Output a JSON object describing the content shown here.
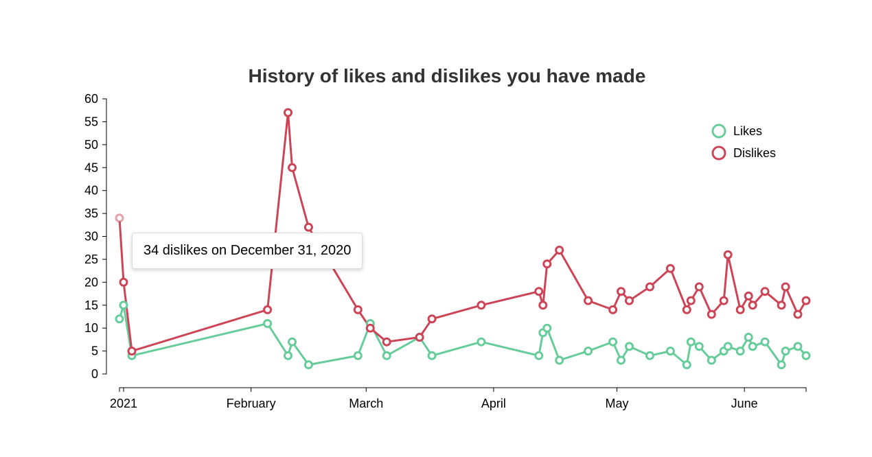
{
  "chart_data": {
    "type": "line",
    "title": "History of likes and dislikes you have made",
    "x_axis": {
      "type": "date",
      "min": "2020-12-31",
      "max": "2021-06-16",
      "tick_labels": [
        {
          "date": "2021-01-01",
          "label": "2021"
        },
        {
          "date": "2021-02-01",
          "label": "February"
        },
        {
          "date": "2021-03-01",
          "label": "March"
        },
        {
          "date": "2021-04-01",
          "label": "April"
        },
        {
          "date": "2021-05-01",
          "label": "May"
        },
        {
          "date": "2021-06-01",
          "label": "June"
        }
      ]
    },
    "y_axis": {
      "min": 0,
      "max": 60,
      "ticks": [
        0,
        5,
        10,
        15,
        20,
        25,
        30,
        35,
        40,
        45,
        50,
        55,
        60
      ]
    },
    "grid": false,
    "legend_position": "top-right",
    "series": [
      {
        "name": "Likes",
        "color": "#66cc99",
        "points": [
          {
            "x": "2020-12-31",
            "y": 12
          },
          {
            "x": "2021-01-01",
            "y": 15
          },
          {
            "x": "2021-01-03",
            "y": 4
          },
          {
            "x": "2021-02-05",
            "y": 11
          },
          {
            "x": "2021-02-10",
            "y": 4
          },
          {
            "x": "2021-02-11",
            "y": 7
          },
          {
            "x": "2021-02-15",
            "y": 2
          },
          {
            "x": "2021-02-27",
            "y": 4
          },
          {
            "x": "2021-03-02",
            "y": 11
          },
          {
            "x": "2021-03-06",
            "y": 4
          },
          {
            "x": "2021-03-14",
            "y": 8
          },
          {
            "x": "2021-03-17",
            "y": 4
          },
          {
            "x": "2021-03-29",
            "y": 7
          },
          {
            "x": "2021-04-12",
            "y": 4
          },
          {
            "x": "2021-04-13",
            "y": 9
          },
          {
            "x": "2021-04-14",
            "y": 10
          },
          {
            "x": "2021-04-17",
            "y": 3
          },
          {
            "x": "2021-04-24",
            "y": 5
          },
          {
            "x": "2021-04-30",
            "y": 7
          },
          {
            "x": "2021-05-02",
            "y": 3
          },
          {
            "x": "2021-05-04",
            "y": 6
          },
          {
            "x": "2021-05-09",
            "y": 4
          },
          {
            "x": "2021-05-14",
            "y": 5
          },
          {
            "x": "2021-05-18",
            "y": 2
          },
          {
            "x": "2021-05-19",
            "y": 7
          },
          {
            "x": "2021-05-21",
            "y": 6
          },
          {
            "x": "2021-05-24",
            "y": 3
          },
          {
            "x": "2021-05-27",
            "y": 5
          },
          {
            "x": "2021-05-28",
            "y": 6
          },
          {
            "x": "2021-05-31",
            "y": 5
          },
          {
            "x": "2021-06-02",
            "y": 8
          },
          {
            "x": "2021-06-03",
            "y": 6
          },
          {
            "x": "2021-06-06",
            "y": 7
          },
          {
            "x": "2021-06-10",
            "y": 2
          },
          {
            "x": "2021-06-11",
            "y": 5
          },
          {
            "x": "2021-06-14",
            "y": 6
          },
          {
            "x": "2021-06-16",
            "y": 4
          }
        ]
      },
      {
        "name": "Dislikes",
        "color": "#cc4455",
        "points": [
          {
            "x": "2020-12-31",
            "y": 34
          },
          {
            "x": "2021-01-01",
            "y": 20
          },
          {
            "x": "2021-01-03",
            "y": 5
          },
          {
            "x": "2021-02-05",
            "y": 14
          },
          {
            "x": "2021-02-10",
            "y": 57
          },
          {
            "x": "2021-02-11",
            "y": 45
          },
          {
            "x": "2021-02-15",
            "y": 32
          },
          {
            "x": "2021-02-27",
            "y": 14
          },
          {
            "x": "2021-03-02",
            "y": 10
          },
          {
            "x": "2021-03-06",
            "y": 7
          },
          {
            "x": "2021-03-14",
            "y": 8
          },
          {
            "x": "2021-03-17",
            "y": 12
          },
          {
            "x": "2021-03-29",
            "y": 15
          },
          {
            "x": "2021-04-12",
            "y": 18
          },
          {
            "x": "2021-04-13",
            "y": 15
          },
          {
            "x": "2021-04-14",
            "y": 24
          },
          {
            "x": "2021-04-17",
            "y": 27
          },
          {
            "x": "2021-04-24",
            "y": 16
          },
          {
            "x": "2021-04-30",
            "y": 14
          },
          {
            "x": "2021-05-02",
            "y": 18
          },
          {
            "x": "2021-05-04",
            "y": 16
          },
          {
            "x": "2021-05-09",
            "y": 19
          },
          {
            "x": "2021-05-14",
            "y": 23
          },
          {
            "x": "2021-05-18",
            "y": 14
          },
          {
            "x": "2021-05-19",
            "y": 16
          },
          {
            "x": "2021-05-21",
            "y": 19
          },
          {
            "x": "2021-05-24",
            "y": 13
          },
          {
            "x": "2021-05-27",
            "y": 16
          },
          {
            "x": "2021-05-28",
            "y": 26
          },
          {
            "x": "2021-05-31",
            "y": 14
          },
          {
            "x": "2021-06-02",
            "y": 17
          },
          {
            "x": "2021-06-03",
            "y": 15
          },
          {
            "x": "2021-06-06",
            "y": 18
          },
          {
            "x": "2021-06-10",
            "y": 15
          },
          {
            "x": "2021-06-11",
            "y": 19
          },
          {
            "x": "2021-06-14",
            "y": 13
          },
          {
            "x": "2021-06-16",
            "y": 16
          }
        ]
      }
    ],
    "highlighted_point": {
      "series": "Dislikes",
      "x": "2020-12-31",
      "y": 34
    },
    "tooltip": "34 dislikes on December 31, 2020"
  }
}
